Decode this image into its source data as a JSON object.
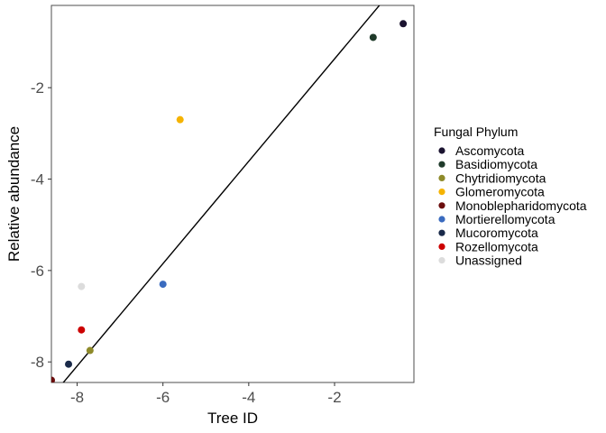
{
  "chart_data": {
    "type": "scatter",
    "title": "",
    "xlabel": "Tree ID",
    "ylabel": "Relative abundance",
    "xlim": [
      -8.6,
      -0.15
    ],
    "ylim": [
      -8.45,
      -0.2
    ],
    "xticks": [
      -8,
      -6,
      -4,
      -2
    ],
    "yticks": [
      -8,
      -6,
      -4,
      -2
    ],
    "x_tick_labels": [
      "-8",
      "-6",
      "-4",
      "-2"
    ],
    "y_tick_labels": [
      "-8",
      "-6",
      "-4",
      "-2"
    ],
    "grid": false,
    "legend": {
      "title": "Fungal Phylum",
      "position": "right"
    },
    "reference_line": {
      "slope": 1.12,
      "intercept": 0.87
    },
    "series": [
      {
        "name": "Ascomycota",
        "color": "#1b1330",
        "points": [
          {
            "x": -0.4,
            "y": -0.6
          }
        ]
      },
      {
        "name": "Basidiomycota",
        "color": "#1f3a2a",
        "points": [
          {
            "x": -1.1,
            "y": -0.9
          }
        ]
      },
      {
        "name": "Chytridiomycota",
        "color": "#8e8a2a",
        "points": [
          {
            "x": -7.7,
            "y": -7.75
          }
        ]
      },
      {
        "name": "Glomeromycota",
        "color": "#f5b301",
        "points": [
          {
            "x": -5.6,
            "y": -2.7
          }
        ]
      },
      {
        "name": "Monoblepharidomycota",
        "color": "#6b0d0d",
        "points": [
          {
            "x": -8.6,
            "y": -8.4
          }
        ]
      },
      {
        "name": "Mortierellomycota",
        "color": "#3a6bbf",
        "points": [
          {
            "x": -6.0,
            "y": -6.3
          }
        ]
      },
      {
        "name": "Mucoromycota",
        "color": "#1a2a4a",
        "points": [
          {
            "x": -8.2,
            "y": -8.05
          }
        ]
      },
      {
        "name": "Rozellomycota",
        "color": "#cc0000",
        "points": [
          {
            "x": -7.9,
            "y": -7.3
          }
        ]
      },
      {
        "name": "Unassigned",
        "color": "#dcdcdc",
        "points": [
          {
            "x": -7.9,
            "y": -6.35
          }
        ]
      }
    ]
  }
}
